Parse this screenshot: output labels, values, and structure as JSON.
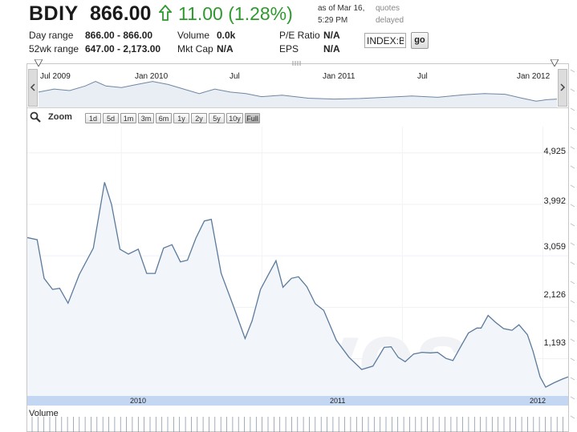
{
  "quote": {
    "symbol": "BDIY",
    "price": "866.00",
    "change": "11.00 (1.28%)",
    "as_of": "as of Mar 16, 5:29 PM",
    "quotes_note": "quotes delayed",
    "change_color": "#2e9a2e"
  },
  "stats": [
    {
      "label": "Day range",
      "value": "866.00 - 866.00"
    },
    {
      "label": "52wk range",
      "value": "647.00 - 2,173.00"
    },
    {
      "label": "Volume",
      "value": "0.0k"
    },
    {
      "label": "Mkt Cap",
      "value": "N/A"
    },
    {
      "label": "P/E Ratio",
      "value": "N/A"
    },
    {
      "label": "EPS",
      "value": "N/A"
    }
  ],
  "symbol_input": {
    "value": "INDEX:B"
  },
  "go_label": "go",
  "overview_labels": [
    "Jul 2009",
    "Jan 2010",
    "Jul",
    "Jan 2011",
    "Jul",
    "Jan 2012"
  ],
  "zoom": {
    "label": "Zoom",
    "buttons": [
      "1d",
      "5d",
      "1m",
      "3m",
      "6m",
      "1y",
      "2y",
      "5y",
      "10y",
      "Full"
    ],
    "active": "Full"
  },
  "y_ticks": [
    "4,925",
    "3,992",
    "3,059",
    "2,126",
    "1,193"
  ],
  "x_ticks": [
    "2010",
    "2011",
    "2012"
  ],
  "volume_label": "Volume",
  "watermark": "wikinvest",
  "chart_data": {
    "type": "area",
    "series": [
      {
        "values": [
          [
            2009.33,
            3390
          ],
          [
            2009.4,
            3350
          ],
          [
            2009.45,
            2650
          ],
          [
            2009.51,
            2450
          ],
          [
            2009.56,
            2470
          ],
          [
            2009.62,
            2200
          ],
          [
            2009.7,
            2720
          ],
          [
            2009.8,
            3200
          ],
          [
            2009.88,
            4390
          ],
          [
            2009.93,
            3990
          ],
          [
            2009.99,
            3180
          ],
          [
            2010.05,
            3090
          ],
          [
            2010.12,
            3180
          ],
          [
            2010.18,
            2740
          ],
          [
            2010.24,
            2740
          ],
          [
            2010.3,
            3200
          ],
          [
            2010.36,
            3260
          ],
          [
            2010.42,
            2950
          ],
          [
            2010.47,
            2980
          ],
          [
            2010.53,
            3380
          ],
          [
            2010.59,
            3690
          ],
          [
            2010.64,
            3720
          ],
          [
            2010.71,
            2740
          ],
          [
            2010.8,
            2130
          ],
          [
            2010.88,
            1560
          ],
          [
            2010.93,
            1880
          ],
          [
            2010.99,
            2450
          ],
          [
            2011.04,
            2690
          ],
          [
            2011.1,
            2970
          ],
          [
            2011.15,
            2490
          ],
          [
            2011.21,
            2650
          ],
          [
            2011.26,
            2680
          ],
          [
            2011.32,
            2500
          ],
          [
            2011.38,
            2190
          ],
          [
            2011.44,
            2070
          ],
          [
            2011.53,
            1530
          ],
          [
            2011.62,
            1220
          ],
          [
            2011.71,
            1000
          ],
          [
            2011.79,
            1060
          ],
          [
            2011.87,
            1400
          ],
          [
            2011.92,
            1410
          ],
          [
            2011.97,
            1220
          ],
          [
            2012.02,
            1140
          ],
          [
            2012.08,
            1280
          ],
          [
            2012.14,
            1310
          ],
          [
            2012.2,
            1300
          ],
          [
            2012.25,
            1310
          ],
          [
            2012.31,
            1200
          ],
          [
            2012.36,
            1160
          ],
          [
            2012.41,
            1390
          ],
          [
            2012.47,
            1660
          ],
          [
            2012.53,
            1750
          ],
          [
            2012.56,
            1750
          ],
          [
            2012.61,
            1980
          ],
          [
            2012.66,
            1860
          ],
          [
            2012.72,
            1740
          ],
          [
            2012.78,
            1710
          ],
          [
            2012.83,
            1810
          ],
          [
            2012.89,
            1630
          ],
          [
            2012.93,
            1330
          ],
          [
            2012.98,
            866
          ],
          [
            2013.02,
            680
          ],
          [
            2013.08,
            760
          ],
          [
            2013.14,
            826
          ],
          [
            2013.18,
            866
          ]
        ]
      }
    ],
    "xlim": [
      2009.33,
      2013.18
    ],
    "ylim": [
      520,
      5400
    ],
    "line_color": "#5b7a9c",
    "fill_color": "#f2f5fa"
  },
  "overview_chart": {
    "values": [
      [
        0,
        0.55
      ],
      [
        0.03,
        0.45
      ],
      [
        0.06,
        0.5
      ],
      [
        0.09,
        0.35
      ],
      [
        0.11,
        0.2
      ],
      [
        0.13,
        0.35
      ],
      [
        0.16,
        0.4
      ],
      [
        0.19,
        0.3
      ],
      [
        0.22,
        0.2
      ],
      [
        0.25,
        0.3
      ],
      [
        0.28,
        0.45
      ],
      [
        0.31,
        0.6
      ],
      [
        0.34,
        0.45
      ],
      [
        0.37,
        0.55
      ],
      [
        0.4,
        0.6
      ],
      [
        0.43,
        0.7
      ],
      [
        0.47,
        0.65
      ],
      [
        0.52,
        0.75
      ],
      [
        0.57,
        0.78
      ],
      [
        0.62,
        0.76
      ],
      [
        0.67,
        0.72
      ],
      [
        0.72,
        0.68
      ],
      [
        0.77,
        0.72
      ],
      [
        0.82,
        0.64
      ],
      [
        0.86,
        0.6
      ],
      [
        0.9,
        0.62
      ],
      [
        0.93,
        0.74
      ],
      [
        0.96,
        0.85
      ],
      [
        0.98,
        0.8
      ],
      [
        1.0,
        0.78
      ]
    ]
  }
}
